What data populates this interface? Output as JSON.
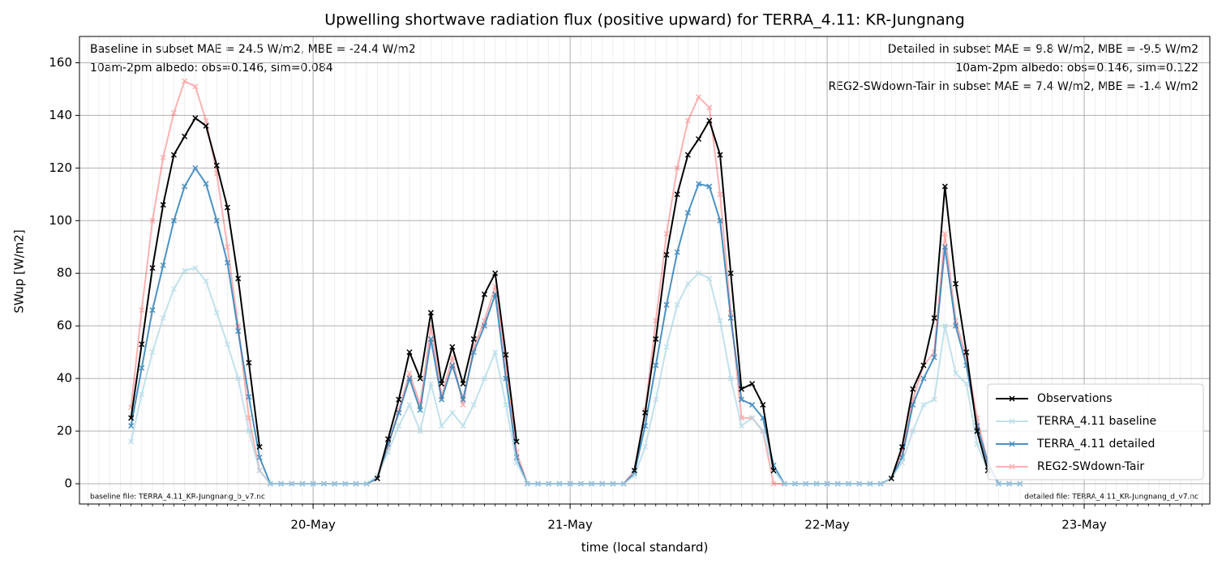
{
  "chart_data": {
    "type": "line",
    "title": "Upwelling shortwave radiation flux (positive upward) for TERRA_4.11: KR-Jungnang",
    "xlabel": "time (local standard)",
    "ylabel": "SWup [W/m2]",
    "annotations": [
      {
        "text": "Baseline in subset MAE = 24.5 W/m2, MBE = -24.4 W/m2",
        "color": "#add8e6"
      },
      {
        "text": "10am-2pm albedo: obs=0.146, sim=0.084",
        "color": "#000000"
      },
      {
        "text": "Detailed in subset MAE = 9.8 W/m2, MBE = -9.5 W/m2",
        "color": "#1f77b4"
      },
      {
        "text": "10am-2pm albedo: obs=0.146, sim=0.122",
        "color": "#000000"
      },
      {
        "text": "REG2-SWdown-Tair in subset MAE = 7.4 W/m2, MBE = -1.4 W/m2",
        "color": "#ff0000"
      },
      {
        "text": "baseline file: TERRA_4.11_KR-Jungnang_b_v7.nc",
        "color": "#000000"
      },
      {
        "text": "detailed file: TERRA_4.11_KR-Jungnang_d_v7.nc",
        "color": "#000000"
      }
    ],
    "x": [
      "19-May 07:00",
      "19-May 08:00",
      "19-May 09:00",
      "19-May 10:00",
      "19-May 11:00",
      "19-May 12:00",
      "19-May 13:00",
      "19-May 14:00",
      "19-May 15:00",
      "19-May 16:00",
      "19-May 17:00",
      "19-May 18:00",
      "19-May 19:00",
      "19-May 20:00",
      "19-May 21:00",
      "19-May 22:00",
      "19-May 23:00",
      "20-May 00:00",
      "20-May 01:00",
      "20-May 02:00",
      "20-May 03:00",
      "20-May 04:00",
      "20-May 05:00",
      "20-May 06:00",
      "20-May 07:00",
      "20-May 08:00",
      "20-May 09:00",
      "20-May 10:00",
      "20-May 11:00",
      "20-May 12:00",
      "20-May 13:00",
      "20-May 14:00",
      "20-May 15:00",
      "20-May 16:00",
      "20-May 17:00",
      "20-May 18:00",
      "20-May 19:00",
      "20-May 20:00",
      "20-May 21:00",
      "20-May 22:00",
      "20-May 23:00",
      "21-May 00:00",
      "21-May 01:00",
      "21-May 02:00",
      "21-May 03:00",
      "21-May 04:00",
      "21-May 05:00",
      "21-May 06:00",
      "21-May 07:00",
      "21-May 08:00",
      "21-May 09:00",
      "21-May 10:00",
      "21-May 11:00",
      "21-May 12:00",
      "21-May 13:00",
      "21-May 14:00",
      "21-May 15:00",
      "21-May 16:00",
      "21-May 17:00",
      "21-May 18:00",
      "21-May 19:00",
      "21-May 20:00",
      "21-May 21:00",
      "21-May 22:00",
      "21-May 23:00",
      "22-May 00:00",
      "22-May 01:00",
      "22-May 02:00",
      "22-May 03:00",
      "22-May 04:00",
      "22-May 05:00",
      "22-May 06:00",
      "22-May 07:00",
      "22-May 08:00",
      "22-May 09:00",
      "22-May 10:00",
      "22-May 11:00",
      "22-May 12:00",
      "22-May 13:00",
      "22-May 14:00",
      "22-May 15:00",
      "22-May 16:00",
      "22-May 17:00",
      "22-May 18:00"
    ],
    "series": [
      {
        "name": "Observations",
        "color": "#000000",
        "values": [
          25,
          53,
          82,
          106,
          125,
          132,
          139,
          136,
          121,
          105,
          78,
          46,
          14,
          null,
          null,
          null,
          null,
          null,
          null,
          null,
          null,
          null,
          null,
          2,
          17,
          32,
          50,
          40,
          65,
          38,
          52,
          38,
          55,
          72,
          80,
          49,
          16,
          null,
          null,
          null,
          null,
          null,
          null,
          null,
          null,
          null,
          null,
          5,
          27,
          55,
          87,
          110,
          125,
          131,
          138,
          125,
          80,
          36,
          38,
          30,
          5,
          null,
          null,
          null,
          null,
          null,
          null,
          null,
          null,
          null,
          null,
          2,
          14,
          36,
          45,
          63,
          113,
          76,
          50,
          20,
          5,
          null,
          null,
          null
        ]
      },
      {
        "name": "TERRA_4.11 baseline",
        "color": "#add8e6",
        "values": [
          16,
          34,
          50,
          63,
          74,
          81,
          82,
          77,
          65,
          53,
          40,
          20,
          5,
          0,
          0,
          0,
          0,
          0,
          0,
          0,
          0,
          0,
          0,
          3,
          12,
          22,
          30,
          20,
          38,
          22,
          27,
          22,
          30,
          40,
          50,
          30,
          8,
          0,
          0,
          0,
          0,
          0,
          0,
          0,
          0,
          0,
          0,
          3,
          14,
          32,
          52,
          68,
          76,
          80,
          78,
          62,
          40,
          22,
          25,
          20,
          5,
          0,
          0,
          0,
          0,
          0,
          0,
          0,
          0,
          0,
          0,
          2,
          8,
          20,
          30,
          32,
          60,
          42,
          38,
          15,
          5,
          0,
          0,
          0
        ]
      },
      {
        "name": "TERRA_4.11 detailed",
        "color": "#1f77b4",
        "values": [
          22,
          44,
          66,
          83,
          100,
          113,
          120,
          114,
          100,
          84,
          58,
          33,
          10,
          0,
          0,
          0,
          0,
          0,
          0,
          0,
          0,
          0,
          0,
          2,
          15,
          27,
          40,
          28,
          55,
          32,
          45,
          32,
          50,
          60,
          72,
          40,
          10,
          0,
          0,
          0,
          0,
          0,
          0,
          0,
          0,
          0,
          0,
          4,
          22,
          45,
          68,
          88,
          103,
          114,
          113,
          100,
          63,
          32,
          30,
          25,
          7,
          0,
          0,
          0,
          0,
          0,
          0,
          0,
          0,
          0,
          0,
          2,
          10,
          30,
          40,
          48,
          90,
          60,
          45,
          22,
          8,
          0,
          0,
          0
        ]
      },
      {
        "name": "REG2-SWdown-Tair",
        "color": "#ff0000",
        "values": [
          29,
          66,
          100,
          124,
          141,
          153,
          151,
          138,
          118,
          90,
          60,
          25,
          5,
          0,
          0,
          0,
          0,
          0,
          0,
          0,
          0,
          0,
          0,
          2,
          14,
          28,
          42,
          30,
          60,
          33,
          48,
          30,
          52,
          62,
          75,
          45,
          12,
          0,
          0,
          0,
          0,
          0,
          0,
          0,
          0,
          0,
          0,
          5,
          28,
          62,
          95,
          120,
          138,
          147,
          143,
          110,
          65,
          25,
          25,
          20,
          0,
          0,
          0,
          0,
          0,
          0,
          0,
          0,
          0,
          0,
          0,
          2,
          12,
          32,
          45,
          50,
          95,
          62,
          48,
          25,
          8,
          0,
          0,
          0
        ]
      }
    ],
    "xlim": [
      "19-May 02:11",
      "23-May 11:44"
    ],
    "xticks": [
      "20-May",
      "21-May",
      "22-May",
      "23-May"
    ],
    "ylim": [
      -7.7,
      170
    ],
    "yticks": [
      0,
      20,
      40,
      60,
      80,
      100,
      120,
      140,
      160
    ],
    "grid": true,
    "legend": "lower right"
  }
}
